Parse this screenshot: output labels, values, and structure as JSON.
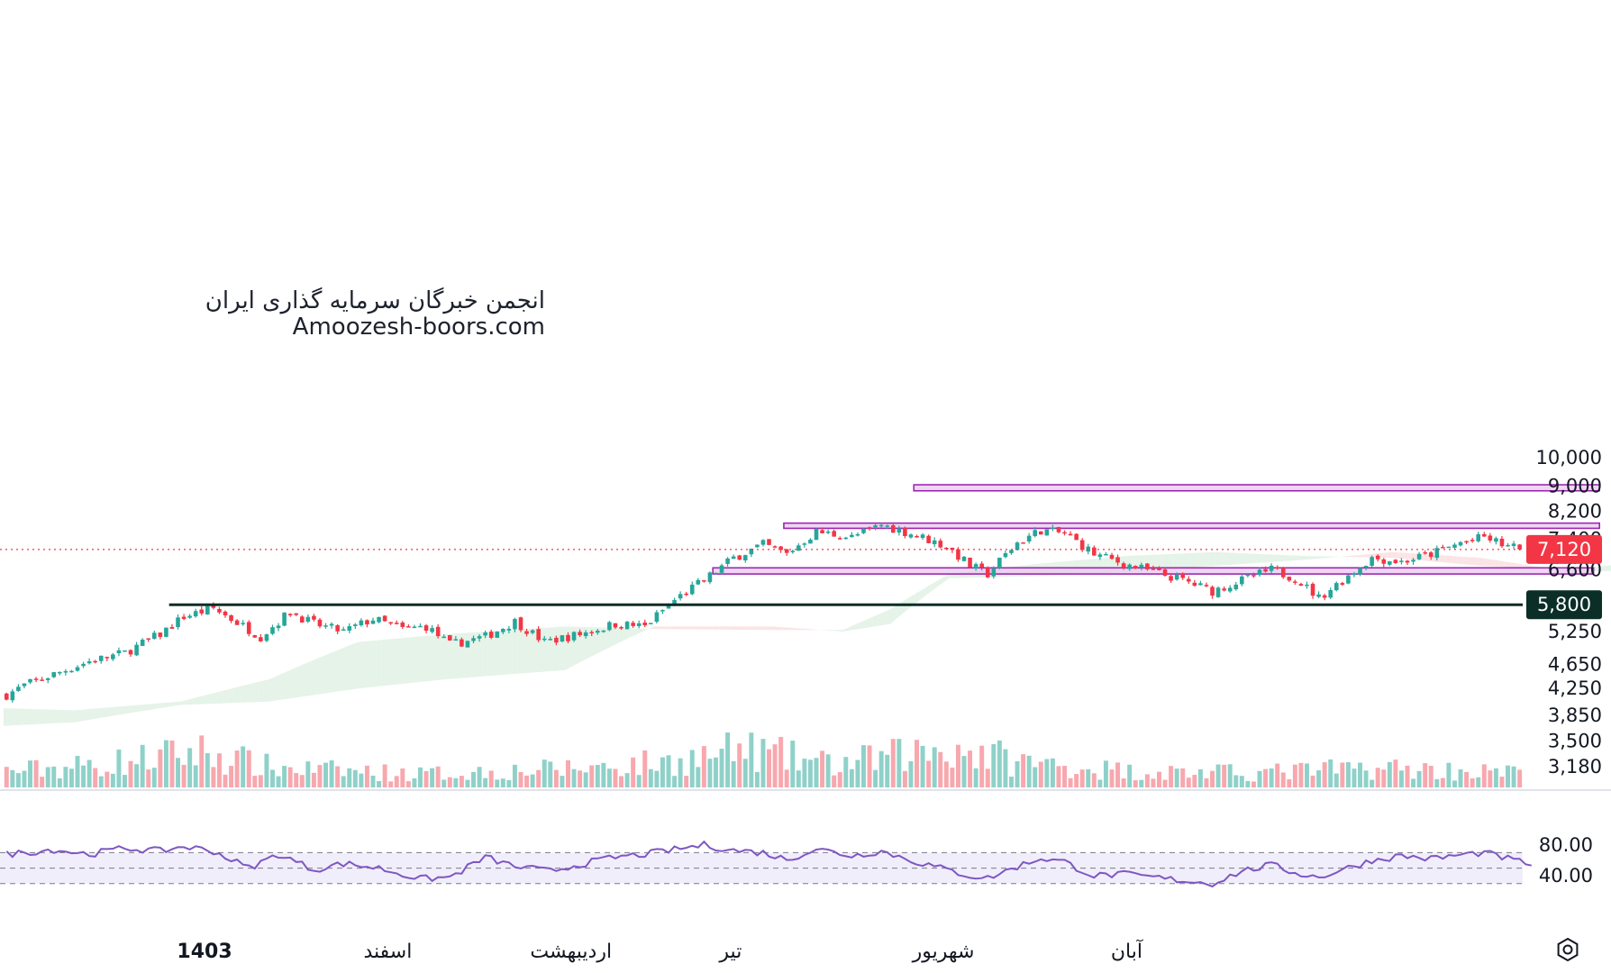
{
  "watermark": {
    "line1": "انجمن خبرگان سرمایه گذاری ایران",
    "line2": "Amoozesh-boors.com"
  },
  "colors": {
    "up": "#26a69a",
    "down": "#f23645",
    "up_vol": "#8fd1c9",
    "down_vol": "#f7a8ae",
    "zone_fill": "#e9c8ef",
    "zone_stroke": "#9c27b0",
    "support": "#0b2e26",
    "rsi_line": "#7e57c2",
    "rsi_band": "#f1eefb",
    "cloud_bull": "#e5f3e8",
    "cloud_bear": "#fbe4e6"
  },
  "price_scale": {
    "labels": [
      "10,000",
      "9,000",
      "8,200",
      "7,400",
      "6,600",
      "5,250",
      "4,650",
      "4,250",
      "3,850",
      "3,500",
      "3,180"
    ],
    "last_price_label": "7,120",
    "support_label": "5,800"
  },
  "rsi_scale": {
    "labels": [
      "80.00",
      "40.00"
    ]
  },
  "time_axis": {
    "labels": [
      "1403",
      "اسفند",
      "اردیبهشت",
      "تیر",
      "شهریور",
      "آبان"
    ]
  },
  "chart_data": {
    "type": "candlestick",
    "y_scale": "log",
    "ylim": [
      3100,
      10500
    ],
    "last_price": 7120,
    "support_level": 5800,
    "resistance_zones": [
      {
        "low": 8850,
        "high": 9050,
        "from_bar": 154,
        "to_bar": 270
      },
      {
        "low": 7700,
        "high": 7850,
        "from_bar": 132,
        "to_bar": 270
      },
      {
        "low": 6500,
        "high": 6650,
        "from_bar": 120,
        "to_bar": 269
      }
    ],
    "close_path": [
      {
        "bar": 0,
        "close": 4150
      },
      {
        "bar": 3,
        "close": 4300
      },
      {
        "bar": 8,
        "close": 4480
      },
      {
        "bar": 14,
        "close": 4700
      },
      {
        "bar": 20,
        "close": 4850
      },
      {
        "bar": 26,
        "close": 5200
      },
      {
        "bar": 30,
        "close": 5550
      },
      {
        "bar": 35,
        "close": 5720
      },
      {
        "bar": 38,
        "close": 5500
      },
      {
        "bar": 43,
        "close": 5150
      },
      {
        "bar": 48,
        "close": 5650
      },
      {
        "bar": 52,
        "close": 5400
      },
      {
        "bar": 57,
        "close": 5250
      },
      {
        "bar": 62,
        "close": 5500
      },
      {
        "bar": 67,
        "close": 5300
      },
      {
        "bar": 71,
        "close": 5350
      },
      {
        "bar": 75,
        "close": 5000
      },
      {
        "bar": 81,
        "close": 5150
      },
      {
        "bar": 86,
        "close": 5450
      },
      {
        "bar": 91,
        "close": 5050
      },
      {
        "bar": 97,
        "close": 5200
      },
      {
        "bar": 103,
        "close": 5400
      },
      {
        "bar": 108,
        "close": 5350
      },
      {
        "bar": 113,
        "close": 5900
      },
      {
        "bar": 118,
        "close": 6350
      },
      {
        "bar": 123,
        "close": 6900
      },
      {
        "bar": 128,
        "close": 7250
      },
      {
        "bar": 132,
        "close": 7000
      },
      {
        "bar": 137,
        "close": 7600
      },
      {
        "bar": 143,
        "close": 7450
      },
      {
        "bar": 148,
        "close": 7800
      },
      {
        "bar": 154,
        "close": 7500
      },
      {
        "bar": 159,
        "close": 7200
      },
      {
        "bar": 163,
        "close": 6700
      },
      {
        "bar": 166,
        "close": 6500
      },
      {
        "bar": 171,
        "close": 7300
      },
      {
        "bar": 175,
        "close": 7650
      },
      {
        "bar": 179,
        "close": 7550
      },
      {
        "bar": 184,
        "close": 7000
      },
      {
        "bar": 189,
        "close": 6750
      },
      {
        "bar": 194,
        "close": 6550
      },
      {
        "bar": 199,
        "close": 6350
      },
      {
        "bar": 204,
        "close": 6100
      },
      {
        "bar": 209,
        "close": 6350
      },
      {
        "bar": 214,
        "close": 6600
      },
      {
        "bar": 218,
        "close": 6400
      },
      {
        "bar": 222,
        "close": 5950
      },
      {
        "bar": 226,
        "close": 6350
      },
      {
        "bar": 231,
        "close": 6900
      },
      {
        "bar": 236,
        "close": 6800
      },
      {
        "bar": 241,
        "close": 7000
      },
      {
        "bar": 246,
        "close": 7300
      },
      {
        "bar": 250,
        "close": 7450
      },
      {
        "bar": 254,
        "close": 7200
      },
      {
        "bar": 256,
        "close": 7120
      }
    ],
    "rsi": {
      "band_upper": 70,
      "band_lower": 30,
      "ylim": [
        10,
        100
      ],
      "path": [
        {
          "bar": 0,
          "v": 68
        },
        {
          "bar": 8,
          "v": 74
        },
        {
          "bar": 14,
          "v": 68
        },
        {
          "bar": 20,
          "v": 76
        },
        {
          "bar": 26,
          "v": 72
        },
        {
          "bar": 30,
          "v": 78
        },
        {
          "bar": 35,
          "v": 72
        },
        {
          "bar": 41,
          "v": 50
        },
        {
          "bar": 46,
          "v": 68
        },
        {
          "bar": 52,
          "v": 48
        },
        {
          "bar": 57,
          "v": 56
        },
        {
          "bar": 63,
          "v": 50
        },
        {
          "bar": 70,
          "v": 36
        },
        {
          "bar": 75,
          "v": 38
        },
        {
          "bar": 81,
          "v": 64
        },
        {
          "bar": 86,
          "v": 52
        },
        {
          "bar": 92,
          "v": 46
        },
        {
          "bar": 97,
          "v": 55
        },
        {
          "bar": 103,
          "v": 64
        },
        {
          "bar": 108,
          "v": 68
        },
        {
          "bar": 113,
          "v": 74
        },
        {
          "bar": 118,
          "v": 80
        },
        {
          "bar": 123,
          "v": 73
        },
        {
          "bar": 128,
          "v": 70
        },
        {
          "bar": 132,
          "v": 61
        },
        {
          "bar": 137,
          "v": 75
        },
        {
          "bar": 143,
          "v": 66
        },
        {
          "bar": 148,
          "v": 72
        },
        {
          "bar": 154,
          "v": 58
        },
        {
          "bar": 159,
          "v": 48
        },
        {
          "bar": 163,
          "v": 40
        },
        {
          "bar": 166,
          "v": 37
        },
        {
          "bar": 171,
          "v": 52
        },
        {
          "bar": 175,
          "v": 63
        },
        {
          "bar": 179,
          "v": 58
        },
        {
          "bar": 184,
          "v": 40
        },
        {
          "bar": 189,
          "v": 42
        },
        {
          "bar": 194,
          "v": 38
        },
        {
          "bar": 199,
          "v": 34
        },
        {
          "bar": 204,
          "v": 30
        },
        {
          "bar": 209,
          "v": 46
        },
        {
          "bar": 214,
          "v": 54
        },
        {
          "bar": 218,
          "v": 44
        },
        {
          "bar": 222,
          "v": 38
        },
        {
          "bar": 226,
          "v": 48
        },
        {
          "bar": 231,
          "v": 60
        },
        {
          "bar": 236,
          "v": 66
        },
        {
          "bar": 241,
          "v": 62
        },
        {
          "bar": 246,
          "v": 67
        },
        {
          "bar": 250,
          "v": 70
        },
        {
          "bar": 254,
          "v": 62
        },
        {
          "bar": 258,
          "v": 55
        }
      ]
    },
    "volume_profile": [
      {
        "bar": 0,
        "v": 0.18
      },
      {
        "bar": 15,
        "v": 0.25
      },
      {
        "bar": 33,
        "v": 0.4
      },
      {
        "bar": 45,
        "v": 0.22
      },
      {
        "bar": 70,
        "v": 0.15
      },
      {
        "bar": 92,
        "v": 0.2
      },
      {
        "bar": 112,
        "v": 0.28
      },
      {
        "bar": 125,
        "v": 0.42
      },
      {
        "bar": 140,
        "v": 0.25
      },
      {
        "bar": 160,
        "v": 0.45
      },
      {
        "bar": 172,
        "v": 0.28
      },
      {
        "bar": 190,
        "v": 0.18
      },
      {
        "bar": 210,
        "v": 0.16
      },
      {
        "bar": 232,
        "v": 0.22
      },
      {
        "bar": 256,
        "v": 0.16
      }
    ],
    "ichimoku_cloud": {
      "span_a": [
        {
          "bar": 0,
          "v": 3950
        },
        {
          "bar": 12,
          "v": 3920
        },
        {
          "bar": 30,
          "v": 4050
        },
        {
          "bar": 45,
          "v": 4400
        },
        {
          "bar": 60,
          "v": 5050
        },
        {
          "bar": 75,
          "v": 5200
        },
        {
          "bar": 95,
          "v": 5350
        },
        {
          "bar": 110,
          "v": 5300
        },
        {
          "bar": 130,
          "v": 5280
        },
        {
          "bar": 142,
          "v": 5280
        },
        {
          "bar": 150,
          "v": 5700
        },
        {
          "bar": 160,
          "v": 6500
        },
        {
          "bar": 175,
          "v": 6750
        },
        {
          "bar": 190,
          "v": 6950
        },
        {
          "bar": 205,
          "v": 7050
        },
        {
          "bar": 220,
          "v": 6950
        },
        {
          "bar": 235,
          "v": 6900
        },
        {
          "bar": 250,
          "v": 6700
        },
        {
          "bar": 265,
          "v": 6600
        },
        {
          "bar": 280,
          "v": 6850
        },
        {
          "bar": 295,
          "v": 7200
        }
      ],
      "span_b": [
        {
          "bar": 0,
          "v": 3700
        },
        {
          "bar": 12,
          "v": 3750
        },
        {
          "bar": 30,
          "v": 4000
        },
        {
          "bar": 45,
          "v": 4050
        },
        {
          "bar": 60,
          "v": 4250
        },
        {
          "bar": 75,
          "v": 4400
        },
        {
          "bar": 95,
          "v": 4550
        },
        {
          "bar": 110,
          "v": 5350
        },
        {
          "bar": 130,
          "v": 5350
        },
        {
          "bar": 142,
          "v": 5250
        },
        {
          "bar": 150,
          "v": 5400
        },
        {
          "bar": 160,
          "v": 6400
        },
        {
          "bar": 175,
          "v": 6450
        },
        {
          "bar": 190,
          "v": 6550
        },
        {
          "bar": 205,
          "v": 6700
        },
        {
          "bar": 220,
          "v": 6850
        },
        {
          "bar": 235,
          "v": 7050
        },
        {
          "bar": 250,
          "v": 6900
        },
        {
          "bar": 265,
          "v": 6550
        },
        {
          "bar": 280,
          "v": 6600
        },
        {
          "bar": 295,
          "v": 6900
        }
      ]
    }
  }
}
